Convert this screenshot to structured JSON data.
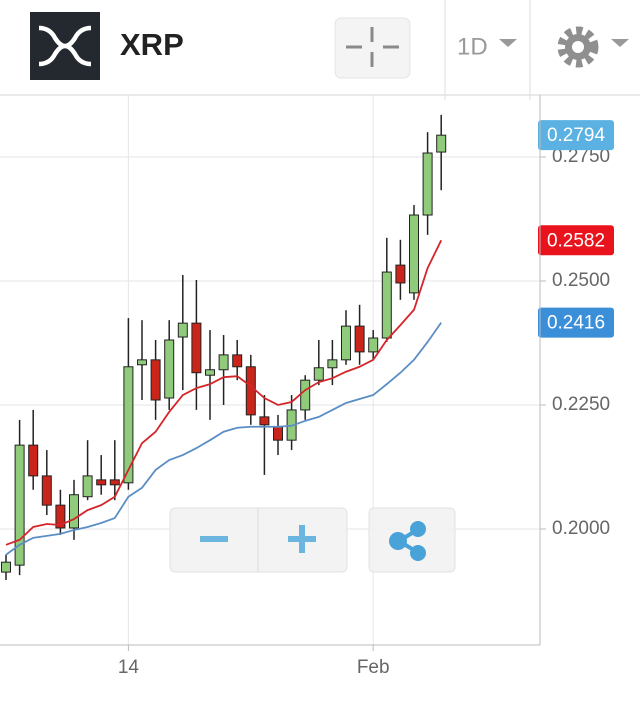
{
  "header": {
    "symbol": "XRP",
    "interval": "1D"
  },
  "chart_data": {
    "type": "candlestick",
    "categories": [
      null,
      null,
      null,
      null,
      null,
      null,
      null,
      null,
      null,
      "14",
      null,
      null,
      null,
      null,
      null,
      null,
      null,
      null,
      null,
      null,
      null,
      null,
      null,
      null,
      null,
      null,
      null,
      "Feb",
      null,
      null,
      null,
      null,
      null
    ],
    "open": [
      0.1913,
      0.1927,
      0.2169,
      0.2107,
      0.2048,
      0.2002,
      0.2065,
      0.2099,
      0.2099,
      0.2093,
      0.2331,
      0.2341,
      0.2264,
      0.2387,
      0.2415,
      0.231,
      0.2321,
      0.2351,
      0.2327,
      0.2226,
      0.2206,
      0.2179,
      0.224,
      0.23,
      0.2325,
      0.2341,
      0.2409,
      0.2357,
      0.2385,
      0.2532,
      0.2476,
      0.2633,
      0.276
    ],
    "high": [
      0.1948,
      0.222,
      0.224,
      0.2159,
      0.2079,
      0.2099,
      0.2179,
      0.2149,
      0.2179,
      0.2425,
      0.2421,
      0.2381,
      0.2421,
      0.2512,
      0.2502,
      0.2401,
      0.2391,
      0.2381,
      0.2351,
      0.227,
      0.223,
      0.227,
      0.231,
      0.2381,
      0.2381,
      0.2441,
      0.2452,
      0.2401,
      0.2587,
      0.2583,
      0.2653,
      0.28,
      0.2835
    ],
    "low": [
      0.1897,
      0.1907,
      0.2079,
      0.2028,
      0.1988,
      0.1978,
      0.2058,
      0.2069,
      0.2058,
      0.2079,
      0.226,
      0.222,
      0.224,
      0.228,
      0.224,
      0.222,
      0.225,
      0.23,
      0.221,
      0.2109,
      0.2149,
      0.2159,
      0.222,
      0.229,
      0.229,
      0.2331,
      0.2331,
      0.2341,
      0.2377,
      0.2462,
      0.2462,
      0.2593,
      0.2683
    ],
    "close": [
      0.1933,
      0.2169,
      0.2107,
      0.2048,
      0.2002,
      0.2069,
      0.2107,
      0.2089,
      0.2089,
      0.2327,
      0.2341,
      0.226,
      0.2381,
      0.2415,
      0.2315,
      0.2321,
      0.2351,
      0.2327,
      0.223,
      0.221,
      0.2179,
      0.224,
      0.23,
      0.2325,
      0.2341,
      0.2409,
      0.2357,
      0.2385,
      0.2518,
      0.2496,
      0.2633,
      0.2758,
      0.2794
    ],
    "up_color": "#8fcb7b",
    "down_color": "#c9251b",
    "last_color": "#5ab1e2",
    "series": [
      {
        "color": "#d4262a",
        "badge_color": "#e8131c",
        "values": [
          0.1968,
          0.1978,
          0.2004,
          0.201,
          0.2008,
          0.202,
          0.2038,
          0.2048,
          0.2065,
          0.2119,
          0.2173,
          0.2196,
          0.2236,
          0.227,
          0.2284,
          0.2292,
          0.2306,
          0.2308,
          0.2288,
          0.2264,
          0.225,
          0.2256,
          0.228,
          0.2296,
          0.2304,
          0.2317,
          0.2327,
          0.2341,
          0.2381,
          0.2411,
          0.2442,
          0.2526,
          0.2582
        ]
      },
      {
        "color": "#5a8ec4",
        "badge_color": "#3b8fd8",
        "values": [
          0.1948,
          0.1968,
          0.1982,
          0.1986,
          0.199,
          0.1998,
          0.2004,
          0.2012,
          0.2022,
          0.2065,
          0.2083,
          0.2119,
          0.2139,
          0.2149,
          0.2163,
          0.2179,
          0.2196,
          0.2204,
          0.2206,
          0.2206,
          0.2206,
          0.2208,
          0.2218,
          0.2226,
          0.224,
          0.2254,
          0.2262,
          0.227,
          0.2292,
          0.2315,
          0.2341,
          0.2377,
          0.2416
        ]
      }
    ],
    "ylim": [
      0.1766,
      0.2875
    ],
    "yticks": [
      {
        "value": 0.2,
        "label": "0.2000"
      },
      {
        "value": 0.225,
        "label": "0.2250"
      },
      {
        "value": 0.25,
        "label": "0.2500"
      },
      {
        "value": 0.275,
        "label": "0.2750"
      }
    ],
    "grid": true
  }
}
